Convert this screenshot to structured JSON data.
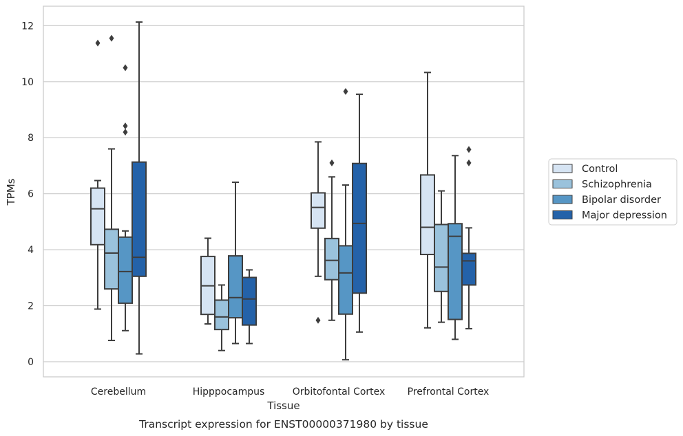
{
  "caption": "Transcript expression for ENST00000371980 by tissue",
  "chart_data": {
    "type": "box",
    "xlabel": "Tissue",
    "ylabel": "TPMs",
    "ylim": [
      -0.5,
      12.7
    ],
    "yticks": [
      0,
      2,
      4,
      6,
      8,
      10,
      12
    ],
    "grid": "horizontal",
    "legend_position": "right",
    "categories": [
      "Cerebellum",
      "Hipppocampus",
      "Orbitofontal Cortex",
      "Prefrontal Cortex"
    ],
    "series": [
      {
        "name": "Control",
        "color": "#d6e4f3",
        "boxes": [
          {
            "whisker_low": 1.88,
            "q1": 4.18,
            "median": 5.46,
            "q3": 6.2,
            "whisker_high": 6.47,
            "outliers": [
              11.38
            ]
          },
          {
            "whisker_low": 1.35,
            "q1": 1.69,
            "median": 2.71,
            "q3": 3.76,
            "whisker_high": 4.41,
            "outliers": []
          },
          {
            "whisker_low": 3.05,
            "q1": 4.77,
            "median": 5.51,
            "q3": 6.03,
            "whisker_high": 7.85,
            "outliers": [
              1.48
            ]
          },
          {
            "whisker_low": 1.21,
            "q1": 3.83,
            "median": 4.8,
            "q3": 6.67,
            "whisker_high": 10.33,
            "outliers": []
          }
        ]
      },
      {
        "name": "Schizophrenia",
        "color": "#9ac2dc",
        "boxes": [
          {
            "whisker_low": 0.76,
            "q1": 2.6,
            "median": 3.88,
            "q3": 4.73,
            "whisker_high": 7.6,
            "outliers": [
              11.55
            ]
          },
          {
            "whisker_low": 0.4,
            "q1": 1.15,
            "median": 1.6,
            "q3": 2.2,
            "whisker_high": 2.74,
            "outliers": []
          },
          {
            "whisker_low": 1.48,
            "q1": 2.93,
            "median": 3.62,
            "q3": 4.4,
            "whisker_high": 6.6,
            "outliers": [
              7.1
            ]
          },
          {
            "whisker_low": 1.41,
            "q1": 2.51,
            "median": 3.38,
            "q3": 4.9,
            "whisker_high": 6.1,
            "outliers": []
          }
        ]
      },
      {
        "name": "Bipolar disorder",
        "color": "#5696c5",
        "boxes": [
          {
            "whisker_low": 1.11,
            "q1": 2.09,
            "median": 3.22,
            "q3": 4.45,
            "whisker_high": 4.67,
            "outliers": [
              10.5,
              8.42,
              8.2
            ]
          },
          {
            "whisker_low": 0.65,
            "q1": 1.57,
            "median": 2.29,
            "q3": 3.78,
            "whisker_high": 6.41,
            "outliers": []
          },
          {
            "whisker_low": 0.07,
            "q1": 1.7,
            "median": 3.17,
            "q3": 4.14,
            "whisker_high": 6.31,
            "outliers": [
              9.65
            ]
          },
          {
            "whisker_low": 0.8,
            "q1": 1.51,
            "median": 4.48,
            "q3": 4.93,
            "whisker_high": 7.36,
            "outliers": []
          }
        ]
      },
      {
        "name": "Major depression",
        "color": "#2462a9",
        "boxes": [
          {
            "whisker_low": 0.28,
            "q1": 3.05,
            "median": 3.73,
            "q3": 7.13,
            "whisker_high": 12.13,
            "outliers": []
          },
          {
            "whisker_low": 0.65,
            "q1": 1.31,
            "median": 2.24,
            "q3": 3.01,
            "whisker_high": 3.28,
            "outliers": []
          },
          {
            "whisker_low": 1.06,
            "q1": 2.45,
            "median": 4.94,
            "q3": 7.08,
            "whisker_high": 9.55,
            "outliers": []
          },
          {
            "whisker_low": 1.18,
            "q1": 2.74,
            "median": 3.6,
            "q3": 3.87,
            "whisker_high": 4.78,
            "outliers": [
              7.58,
              7.1
            ]
          }
        ]
      }
    ]
  }
}
